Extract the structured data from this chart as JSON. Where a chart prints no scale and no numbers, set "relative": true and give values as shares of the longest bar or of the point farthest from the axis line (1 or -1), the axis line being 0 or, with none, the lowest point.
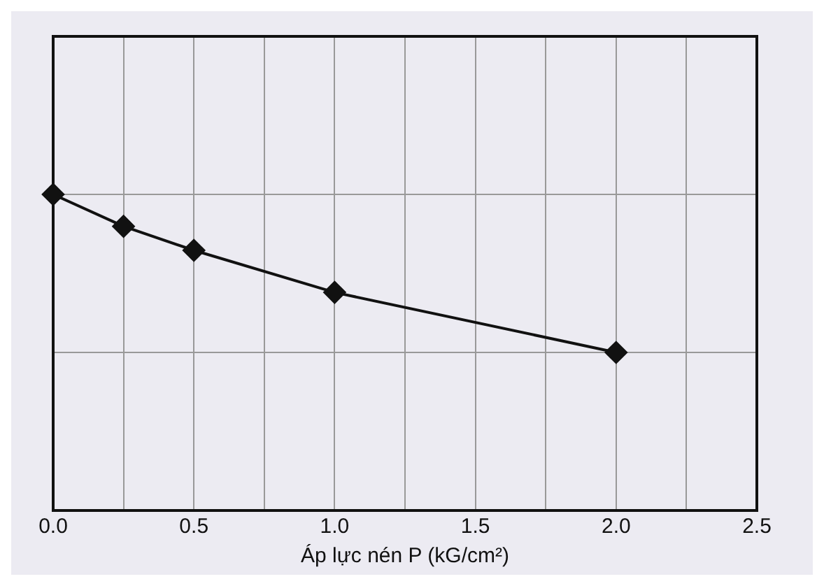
{
  "chart_data": {
    "type": "line",
    "xlabel": "Áp lực nén P (kG/cm²)",
    "x": [
      0,
      0.25,
      0.5,
      1.0,
      2.0
    ],
    "series": [
      {
        "color": "#111111",
        "values": [
          1,
          0.899,
          0.823,
          0.69,
          0.5
        ]
      }
    ],
    "relative": true,
    "xlim": [
      0,
      2.5
    ],
    "xticks": [
      {
        "value": 0,
        "label": "0.0"
      },
      {
        "value": 0.25,
        "label": null
      },
      {
        "value": 0.5,
        "label": "0.5"
      },
      {
        "value": 0.75,
        "label": null
      },
      {
        "value": 1,
        "label": "1.0"
      },
      {
        "value": 1.25,
        "label": null
      },
      {
        "value": 1.5,
        "label": "1.5"
      },
      {
        "value": 1.75,
        "label": null
      },
      {
        "value": 2,
        "label": "2.0"
      },
      {
        "value": 2.25,
        "label": null
      },
      {
        "value": 2.5,
        "label": "2.5"
      }
    ],
    "grid": true,
    "legend": false,
    "marker": "diamond",
    "line_style": "solid"
  }
}
